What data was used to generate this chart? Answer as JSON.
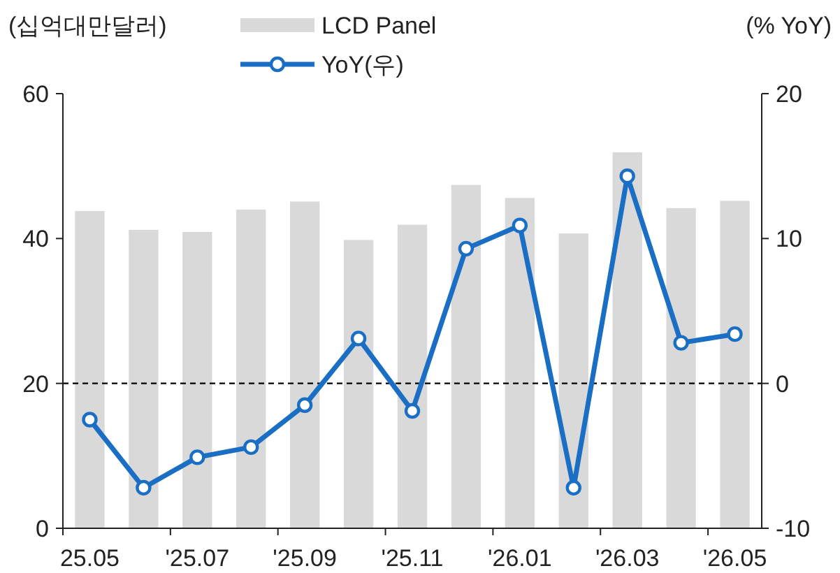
{
  "chart_data": {
    "type": "bar",
    "ylabel": "(십억대만달러)",
    "y2label": "(% YoY)",
    "categories": [
      "25.05",
      null,
      "'25.07",
      null,
      "'25.09",
      null,
      "'25.11",
      null,
      "'26.01",
      null,
      "'26.03",
      null,
      "'26.05"
    ],
    "series": [
      {
        "name": "LCD Panel",
        "color": "#d9d9d9",
        "values": [
          43.8,
          41.2,
          40.9,
          44.0,
          45.1,
          39.8,
          41.9,
          47.4,
          45.6,
          40.7,
          51.9,
          44.2,
          45.2
        ]
      },
      {
        "name": "YoY(우)",
        "type": "line",
        "axis": "y2",
        "color": "#1a6fc4",
        "marker": "circle",
        "line_style": "solid",
        "values": [
          -2.5,
          -7.2,
          -5.1,
          -4.4,
          -1.5,
          3.1,
          -1.9,
          9.3,
          10.9,
          -7.2,
          14.3,
          2.8,
          3.4
        ]
      }
    ],
    "ylim": [
      0,
      60
    ],
    "yticks": [
      0,
      20,
      40,
      60
    ],
    "y2lim": [
      -10,
      20
    ],
    "y2ticks": [
      -10,
      0,
      10,
      20
    ],
    "ref_lines": [
      {
        "axis": "y2",
        "value": 0,
        "color": "#000000",
        "line_style": "dashed"
      }
    ],
    "grid": false,
    "legend": "top"
  }
}
